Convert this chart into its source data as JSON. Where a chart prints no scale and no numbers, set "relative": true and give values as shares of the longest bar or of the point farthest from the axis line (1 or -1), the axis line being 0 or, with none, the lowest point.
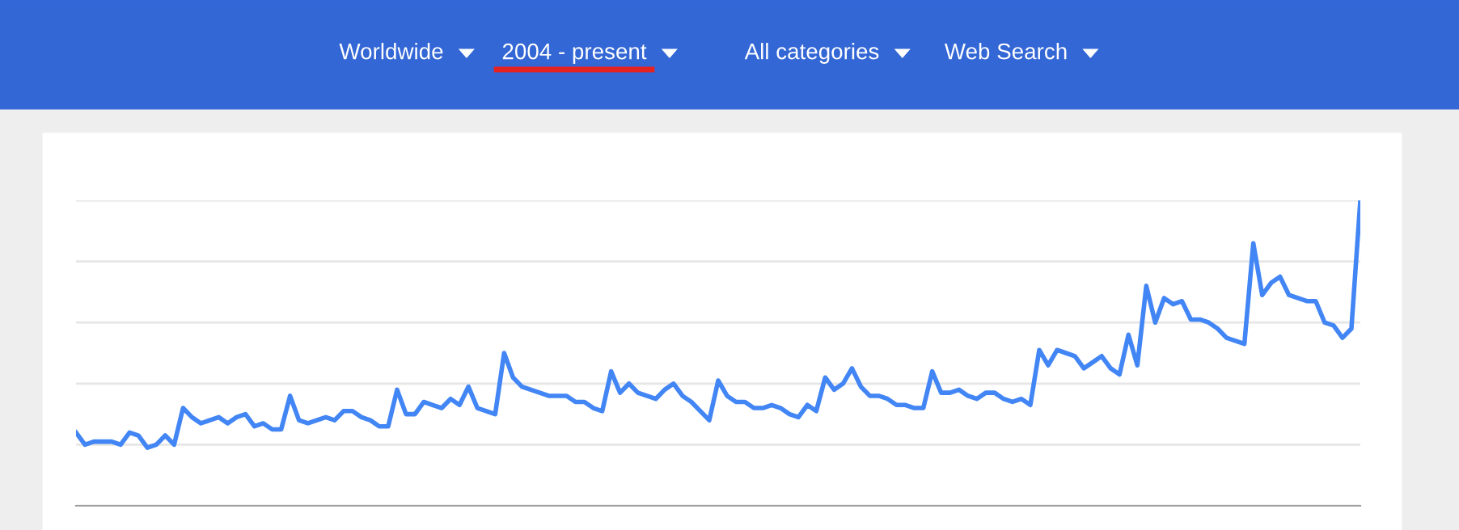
{
  "chart_data": {
    "type": "line",
    "relative": true,
    "color": "#4285f4",
    "annotations": [
      "Worldwide",
      "2004 - present",
      "All categories",
      "Web Search"
    ],
    "grid": "y",
    "marker": "none",
    "line_style": "solid",
    "categories": [
      null,
      null,
      null,
      null,
      null,
      null,
      null,
      null,
      null,
      null,
      null,
      null,
      null,
      null,
      null,
      null,
      null,
      null,
      null,
      null,
      null,
      null,
      null,
      null,
      null,
      null,
      null,
      null,
      null,
      null,
      null,
      null,
      null,
      null,
      null,
      null,
      null,
      null,
      null,
      null,
      null,
      null,
      null,
      null,
      null,
      null,
      null,
      null,
      null,
      null,
      null,
      null,
      null,
      null,
      null,
      null,
      null,
      null,
      null,
      null,
      null,
      null,
      null,
      null,
      null,
      null,
      null,
      null,
      null,
      null,
      null,
      null,
      null,
      null,
      null,
      null,
      null,
      null,
      null,
      null,
      null,
      null,
      null,
      null,
      null,
      null,
      null,
      null,
      null,
      null,
      null,
      null,
      null,
      null,
      null,
      null,
      null,
      null,
      null,
      null,
      null,
      null,
      null,
      null,
      null,
      null,
      null,
      null,
      null,
      null,
      null,
      null,
      null,
      null,
      null,
      null,
      null,
      null,
      null,
      null,
      null,
      null,
      null,
      null,
      null,
      null,
      null,
      null,
      null,
      null,
      null,
      null,
      null,
      null,
      null,
      null,
      null,
      null,
      null,
      null,
      null,
      null,
      null,
      null,
      null
    ],
    "values": [
      0.24,
      0.2,
      0.21,
      0.21,
      0.21,
      0.2,
      0.24,
      0.23,
      0.19,
      0.2,
      0.23,
      0.2,
      0.32,
      0.29,
      0.27,
      0.28,
      0.29,
      0.27,
      0.29,
      0.3,
      0.26,
      0.27,
      0.25,
      0.25,
      0.36,
      0.28,
      0.27,
      0.28,
      0.29,
      0.28,
      0.31,
      0.31,
      0.29,
      0.28,
      0.26,
      0.26,
      0.38,
      0.3,
      0.3,
      0.34,
      0.33,
      0.32,
      0.35,
      0.33,
      0.39,
      0.32,
      0.31,
      0.3,
      0.5,
      0.42,
      0.39,
      0.38,
      0.37,
      0.36,
      0.36,
      0.36,
      0.34,
      0.34,
      0.32,
      0.31,
      0.44,
      0.37,
      0.4,
      0.37,
      0.36,
      0.35,
      0.38,
      0.4,
      0.36,
      0.34,
      0.31,
      0.28,
      0.41,
      0.36,
      0.34,
      0.34,
      0.32,
      0.32,
      0.33,
      0.32,
      0.3,
      0.29,
      0.33,
      0.31,
      0.42,
      0.38,
      0.4,
      0.45,
      0.39,
      0.36,
      0.36,
      0.35,
      0.33,
      0.33,
      0.32,
      0.32,
      0.44,
      0.37,
      0.37,
      0.38,
      0.36,
      0.35,
      0.37,
      0.37,
      0.35,
      0.34,
      0.35,
      0.33,
      0.51,
      0.46,
      0.51,
      0.5,
      0.49,
      0.45,
      0.47,
      0.49,
      0.45,
      0.43,
      0.56,
      0.46,
      0.72,
      0.6,
      0.68,
      0.66,
      0.67,
      0.61,
      0.61,
      0.6,
      0.58,
      0.55,
      0.54,
      0.53,
      0.86,
      0.69,
      0.73,
      0.75,
      0.69,
      0.68,
      0.67,
      0.67,
      0.6,
      0.59,
      0.55,
      0.58,
      1.0
    ]
  }
}
